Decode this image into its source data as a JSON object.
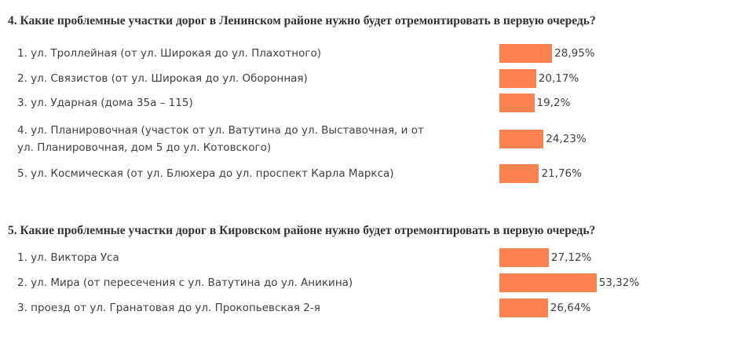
{
  "chart_data": [
    {
      "type": "bar",
      "orientation": "horizontal",
      "title": "4. Какие проблемные участки дорог в Ленинском районе нужно будет отремонтировать в первую очередь?",
      "categories": [
        "1. ул. Троллейная (от ул. Широкая до ул. Плахотного)",
        "2. ул. Связистов (от ул. Широкая до ул. Оборонная)",
        "3. ул. Ударная (дома 35а – 115)",
        "4. ул. Планировочная (участок от ул. Ватутина до ул. Выставочная, и от ул. Планировочная, дом 5 до ул. Котовского)",
        "5. ул. Космическая (от ул. Блюхера до ул. проспект Карла Маркса)"
      ],
      "category_lines": [
        [
          "1. ул. Троллейная (от ул. Широкая до ул. Плахотного)"
        ],
        [
          "2. ул. Связистов (от ул. Широкая до ул. Оборонная)"
        ],
        [
          "3. ул. Ударная (дома 35а – 115)"
        ],
        [
          "4. ул. Планировочная (участок от ул. Ватутина до ул. Выставочная, и от",
          "ул. Планировочная, дом 5 до ул. Котовского)"
        ],
        [
          "5. ул. Космическая (от ул. Блюхера до ул. проспект Карла Маркса)"
        ]
      ],
      "values": [
        28.95,
        20.17,
        19.2,
        24.23,
        21.76
      ],
      "value_labels": [
        "28,95%",
        "20,17%",
        "19,2%",
        "24,23%",
        "21,76%"
      ],
      "unit": "%",
      "xlim": [
        0,
        100
      ],
      "bar_color": "#fc8251",
      "grid": false
    },
    {
      "type": "bar",
      "orientation": "horizontal",
      "title": "5. Какие проблемные участки дорог в Кировском районе нужно будет отремонтировать в первую очередь?",
      "categories": [
        "1. ул. Виктора Уса",
        "2. ул. Мира (от пересечения с ул. Ватутина до ул. Аникина)",
        "3. проезд от ул. Гранатовая до ул. Прокопьевская 2-я"
      ],
      "category_lines": [
        [
          "1. ул. Виктора Уса"
        ],
        [
          "2. ул. Мира (от пересечения с ул. Ватутина до ул. Аникина)"
        ],
        [
          "3. проезд от ул. Гранатовая до ул. Прокопьевская 2-я"
        ]
      ],
      "values": [
        27.12,
        53.32,
        26.64
      ],
      "value_labels": [
        "27,12%",
        "53,32%",
        "26,64%"
      ],
      "unit": "%",
      "xlim": [
        0,
        100
      ],
      "bar_color": "#fc8251",
      "grid": false
    }
  ]
}
